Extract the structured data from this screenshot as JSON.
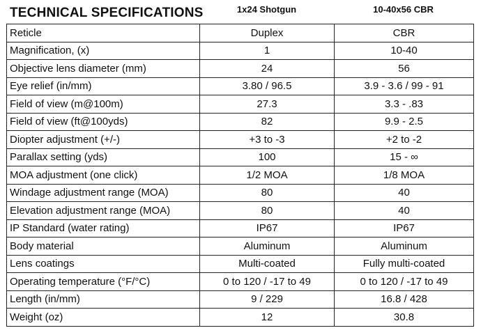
{
  "header": {
    "title": "TECHNICAL SPECIFICATIONS",
    "columns": [
      "1x24 Shotgun",
      "10-40x56 CBR"
    ]
  },
  "rows": [
    {
      "label": "Reticle",
      "a": "Duplex",
      "b": "CBR"
    },
    {
      "label": "Magnification, (x)",
      "a": "1",
      "b": "10-40"
    },
    {
      "label": "Objective lens diameter (mm)",
      "a": "24",
      "b": "56"
    },
    {
      "label": "Eye relief (in/mm)",
      "a": "3.80 / 96.5",
      "b": "3.9 - 3.6 / 99 - 91"
    },
    {
      "label": "Field of view (m@100m)",
      "a": "27.3",
      "b": "3.3 - .83"
    },
    {
      "label": "Field of view (ft@100yds)",
      "a": "82",
      "b": "9.9 - 2.5"
    },
    {
      "label": "Diopter adjustment (+/-)",
      "a": "+3 to -3",
      "b": "+2 to -2"
    },
    {
      "label": "Parallax setting (yds)",
      "a": "100",
      "b": "15 - ∞"
    },
    {
      "label": "MOA adjustment (one click)",
      "a": "1/2 MOA",
      "b": "1/8 MOA"
    },
    {
      "label": "Windage adjustment range (MOA)",
      "a": "80",
      "b": "40"
    },
    {
      "label": "Elevation adjustment range (MOA)",
      "a": "80",
      "b": "40"
    },
    {
      "label": "IP Standard (water rating)",
      "a": "IP67",
      "b": "IP67"
    },
    {
      "label": "Body material",
      "a": "Aluminum",
      "b": "Aluminum"
    },
    {
      "label": "Lens coatings",
      "a": "Multi-coated",
      "b": "Fully multi-coated"
    },
    {
      "label": "Operating temperature (°F/°C)",
      "a": "0 to 120 / -17 to 49",
      "b": "0 to 120 / -17 to 49"
    },
    {
      "label": "Length  (in/mm)",
      "a": "9 / 229",
      "b": "16.8 / 428"
    },
    {
      "label": "Weight (oz)",
      "a": "12",
      "b": "30.8"
    }
  ]
}
